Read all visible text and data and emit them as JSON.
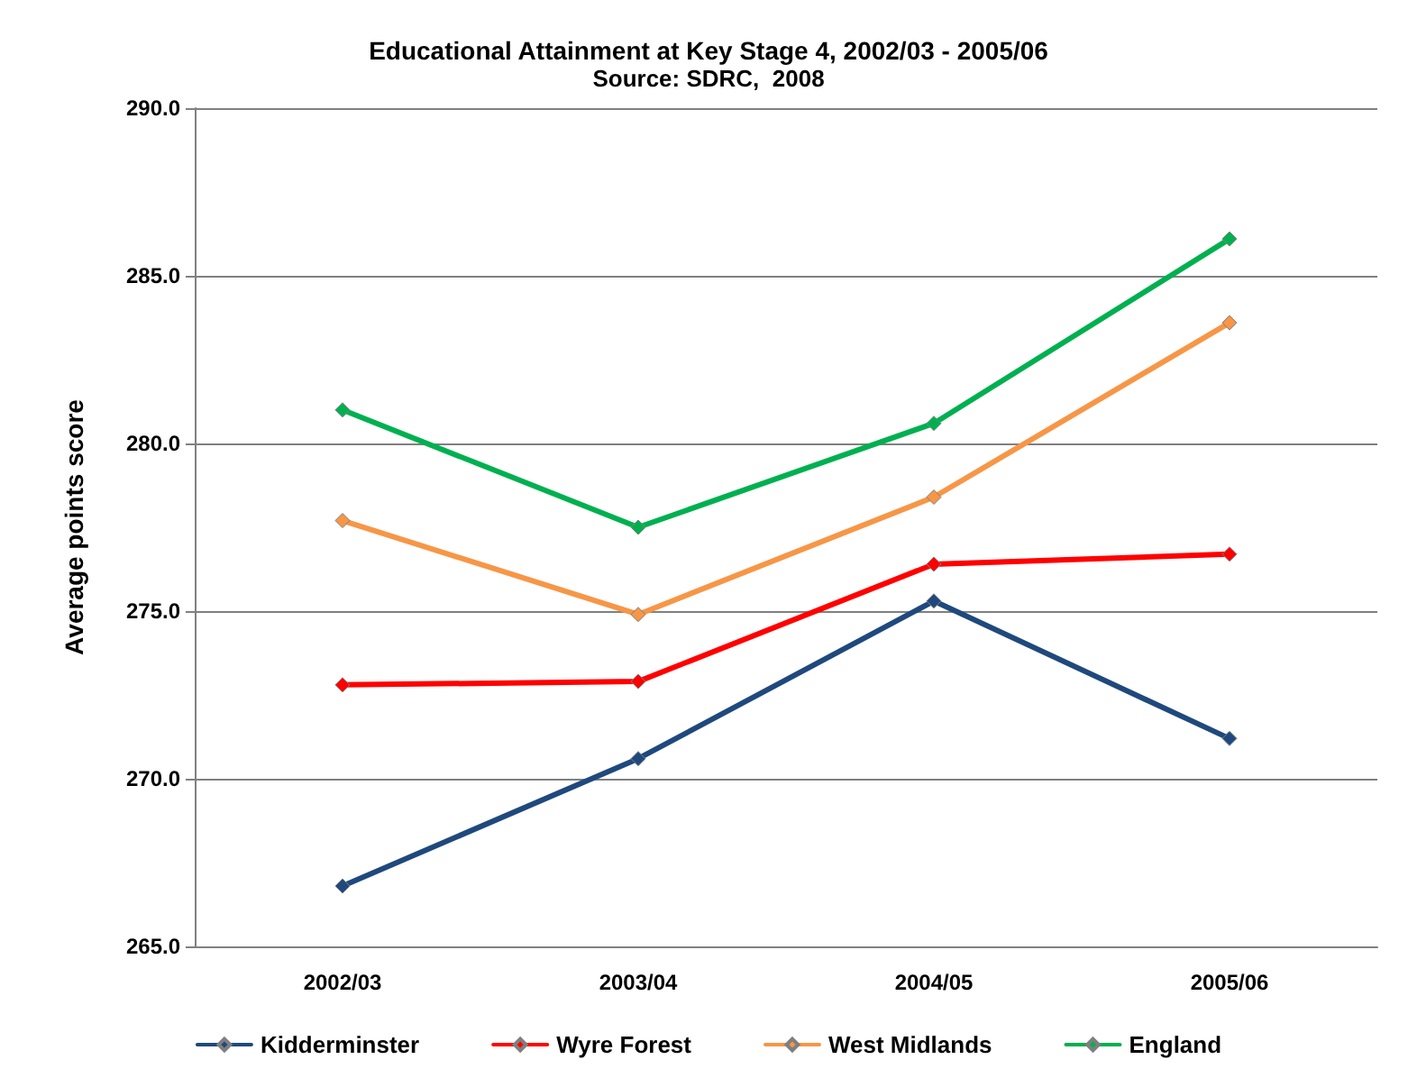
{
  "chart_data": {
    "type": "line",
    "title": "Educational Attainment at Key Stage 4, 2002/03 - 2005/06",
    "subtitle": "Source: SDRC,  2008",
    "ylabel": "Average points score",
    "categories": [
      "2002/03",
      "2003/04",
      "2004/05",
      "2005/06"
    ],
    "series": [
      {
        "name": "Kidderminster",
        "color": "#1f497d",
        "values": [
          266.8,
          270.6,
          275.3,
          271.2
        ]
      },
      {
        "name": "Wyre Forest",
        "color": "#ff0000",
        "values": [
          272.8,
          272.9,
          276.4,
          276.7
        ]
      },
      {
        "name": "West Midlands",
        "color": "#f79646",
        "values": [
          277.7,
          274.9,
          278.4,
          283.6
        ]
      },
      {
        "name": "England",
        "color": "#00b050",
        "values": [
          281.0,
          277.5,
          280.6,
          286.1
        ]
      }
    ],
    "ylim": [
      265,
      290
    ],
    "yticks": [
      {
        "value": 265,
        "label": "265.0"
      },
      {
        "value": 270,
        "label": "270.0"
      },
      {
        "value": 275,
        "label": "275.0"
      },
      {
        "value": 280,
        "label": "280.0"
      },
      {
        "value": 285,
        "label": "285.0"
      },
      {
        "value": 290,
        "label": "290.0"
      }
    ],
    "grid": "y",
    "legend": "bottom",
    "marker": "diamond",
    "line_style": "solid"
  }
}
